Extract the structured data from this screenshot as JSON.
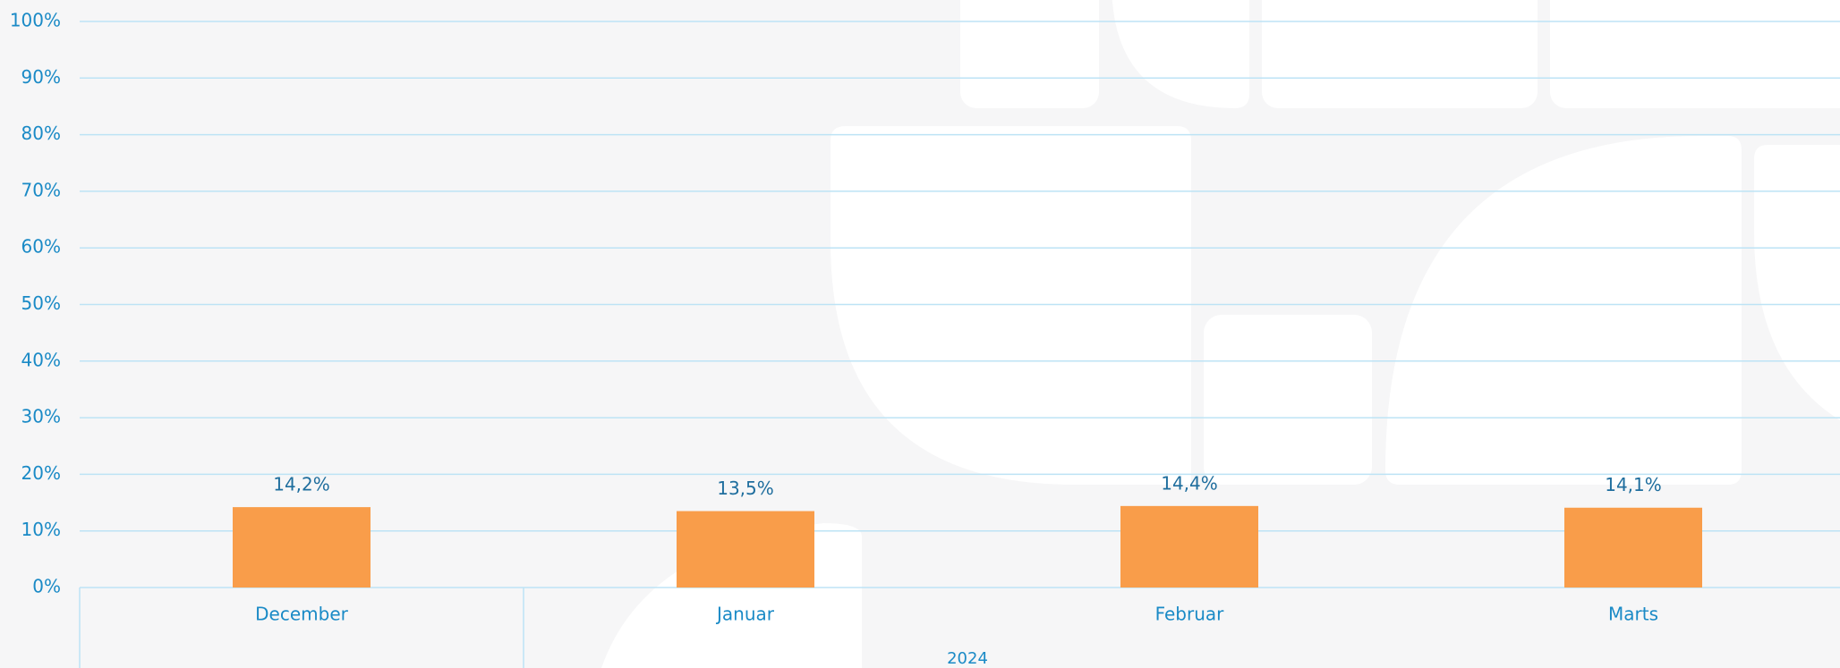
{
  "chart_data": {
    "type": "bar",
    "categories": [
      "December",
      "Januar",
      "Februar",
      "Marts"
    ],
    "values": [
      14.2,
      13.5,
      14.4,
      14.1
    ],
    "value_labels": [
      "14,2%",
      "13,5%",
      "14,4%",
      "14,1%"
    ],
    "x_group": "2024",
    "color": "#f99d4a",
    "ylim": [
      0,
      100
    ],
    "yticks": [
      {
        "value": 0,
        "label": "0%"
      },
      {
        "value": 10,
        "label": "10%"
      },
      {
        "value": 20,
        "label": "20%"
      },
      {
        "value": 30,
        "label": "30%"
      },
      {
        "value": 40,
        "label": "40%"
      },
      {
        "value": 50,
        "label": "50%"
      },
      {
        "value": 60,
        "label": "60%"
      },
      {
        "value": 70,
        "label": "70%"
      },
      {
        "value": 80,
        "label": "80%"
      },
      {
        "value": 90,
        "label": "90%"
      },
      {
        "value": 100,
        "label": "100%"
      }
    ],
    "grid": true
  }
}
